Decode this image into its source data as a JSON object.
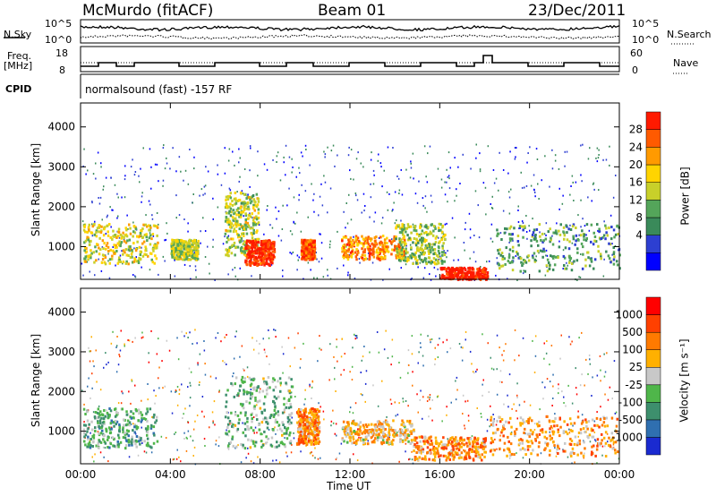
{
  "header": {
    "station": "McMurdo (fitACF)",
    "beam": "Beam 01",
    "date": "23/Dec/2011"
  },
  "strip_labels": {
    "nsky": "N.Sky",
    "nsky_tick_top": "10^5",
    "nsky_tick_bottom": "10^0",
    "nsearch": "N.Search",
    "nsearch_tick_top": "10^5",
    "nsearch_tick_bottom": "10^0",
    "freq": "Freq.",
    "freq_unit": "[MHz]",
    "freq_tick_top": "18",
    "freq_tick_bottom": "8",
    "nave": "Nave",
    "nave_tick_top": "60",
    "nave_tick_bottom": "0",
    "cpid": "CPID",
    "cpid_value": "normalsound (fast) -157 RF"
  },
  "chart_data": [
    {
      "type": "heatmap",
      "panel": "power",
      "ylabel": "Slant Range [km]",
      "ylim": [
        180,
        4600
      ],
      "xlim_hours": [
        0,
        24
      ],
      "yticks": [
        1000,
        2000,
        3000,
        4000
      ],
      "colorbar_label": "Power [dB]",
      "colorbar_ticks": [
        "28",
        "24",
        "20",
        "16",
        "12",
        "8",
        "4"
      ],
      "colorbar_colors": [
        "#0000ff",
        "#2d3fd1",
        "#3a8a5a",
        "#54a55a",
        "#c8d02a",
        "#ffd400",
        "#ff9a00",
        "#ff5a00",
        "#ff1a00"
      ],
      "features": [
        {
          "t": [
            0.1,
            3.4
          ],
          "range": [
            600,
            1600
          ],
          "level": 0.55
        },
        {
          "t": [
            4.0,
            5.2
          ],
          "range": [
            700,
            1200
          ],
          "level": 0.5
        },
        {
          "t": [
            6.4,
            7.9
          ],
          "range": [
            800,
            2400
          ],
          "level": 0.5
        },
        {
          "t": [
            7.3,
            8.6
          ],
          "range": [
            550,
            1200
          ],
          "level": 0.95
        },
        {
          "t": [
            9.8,
            10.4
          ],
          "range": [
            700,
            1200
          ],
          "level": 0.85
        },
        {
          "t": [
            11.6,
            14.4
          ],
          "range": [
            700,
            1300
          ],
          "level": 0.75
        },
        {
          "t": [
            14.0,
            16.2
          ],
          "range": [
            600,
            1600
          ],
          "level": 0.45
        },
        {
          "t": [
            16.0,
            18.1
          ],
          "range": [
            200,
            500
          ],
          "level": 1.0
        },
        {
          "t": [
            18.5,
            24.0
          ],
          "range": [
            400,
            1600
          ],
          "level": 0.35
        }
      ]
    },
    {
      "type": "heatmap",
      "panel": "velocity",
      "ylabel": "Slant Range [km]",
      "ylim": [
        180,
        4600
      ],
      "xlim_hours": [
        0,
        24
      ],
      "yticks": [
        1000,
        2000,
        3000,
        4000
      ],
      "colorbar_label": "Velocity [m s⁻¹]",
      "colorbar_ticks": [
        "1000",
        "500",
        "100",
        "25",
        "-25",
        "-100",
        "-500",
        "-1000"
      ],
      "colorbar_colors": [
        "#1a2ad0",
        "#2f6fb0",
        "#3d8f6d",
        "#4fb64a",
        "#c8c8c8",
        "#ffb000",
        "#ff7a00",
        "#ff4000",
        "#ff0000"
      ],
      "features": [
        {
          "t": [
            0.1,
            3.4
          ],
          "range": [
            600,
            1600
          ],
          "level": 0.35
        },
        {
          "t": [
            6.4,
            9.4
          ],
          "range": [
            600,
            2400
          ],
          "level": 0.4
        },
        {
          "t": [
            9.6,
            10.6
          ],
          "range": [
            700,
            1600
          ],
          "level": 0.7
        },
        {
          "t": [
            11.6,
            14.8
          ],
          "range": [
            700,
            1300
          ],
          "level": 0.6
        },
        {
          "t": [
            14.8,
            18.0
          ],
          "range": [
            300,
            900
          ],
          "level": 0.7
        },
        {
          "t": [
            18.2,
            24.0
          ],
          "range": [
            400,
            1400
          ],
          "level": 0.65
        }
      ]
    }
  ],
  "x_axis": {
    "ticks": [
      "00:00",
      "04:00",
      "08:00",
      "12:00",
      "16:00",
      "20:00",
      "00:00"
    ],
    "label": "Time UT"
  }
}
